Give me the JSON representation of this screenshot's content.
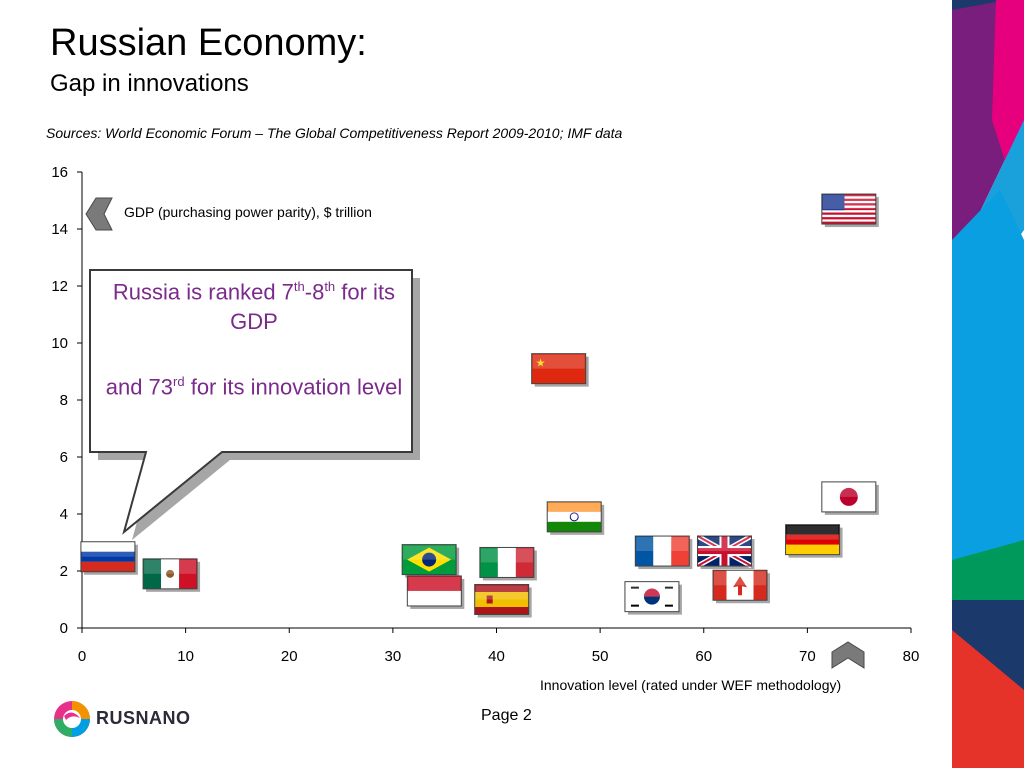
{
  "header": {
    "title": "Russian Economy:",
    "subtitle": "Gap in innovations",
    "source": "Sources: World Economic Forum – The Global Competitiveness Report 2009-2010; IMF data"
  },
  "callout": {
    "line1_a": "Russia is ranked 7",
    "line1_sup1": "th",
    "line1_b": "-8",
    "line1_sup2": "th",
    "line1_c": " for its GDP",
    "line2_a": "and 73",
    "line2_sup": "rd",
    "line2_b": " for its innovation level",
    "text_color": "#7b2a8c"
  },
  "footer": {
    "logo_text": "RUSNANO",
    "page": "Page 2"
  },
  "chart_data": {
    "type": "scatter",
    "xlabel": "Innovation level (rated under WEF methodology)",
    "ylabel": "GDP (purchasing power parity), $ trillion",
    "xlim": [
      0,
      80
    ],
    "ylim": [
      0,
      16
    ],
    "xticks": [
      0,
      10,
      20,
      30,
      40,
      50,
      60,
      70,
      80
    ],
    "yticks": [
      0,
      2,
      4,
      6,
      8,
      10,
      12,
      14,
      16
    ],
    "grid": false,
    "points": [
      {
        "flag": "us-flag-icon",
        "x": 74,
        "y": 14.7
      },
      {
        "flag": "china-flag-icon",
        "x": 46,
        "y": 9.1
      },
      {
        "flag": "japan-flag-icon",
        "x": 74,
        "y": 4.6
      },
      {
        "flag": "india-flag-icon",
        "x": 47.5,
        "y": 3.9
      },
      {
        "flag": "germany-flag-icon",
        "x": 70.5,
        "y": 3.1
      },
      {
        "flag": "uk-flag-icon",
        "x": 62,
        "y": 2.7
      },
      {
        "flag": "france-flag-icon",
        "x": 56,
        "y": 2.7
      },
      {
        "flag": "russia-flag-icon",
        "x": 2.5,
        "y": 2.5
      },
      {
        "flag": "brazil-flag-icon",
        "x": 33.5,
        "y": 2.4
      },
      {
        "flag": "italy-flag-icon",
        "x": 41,
        "y": 2.3
      },
      {
        "flag": "mexico-flag-icon",
        "x": 8.5,
        "y": 1.9
      },
      {
        "flag": "canada-flag-icon",
        "x": 63.5,
        "y": 1.5
      },
      {
        "flag": "indonesia-flag-icon",
        "x": 34,
        "y": 1.3
      },
      {
        "flag": "spain-flag-icon",
        "x": 40.5,
        "y": 1.0
      },
      {
        "flag": "korea-flag-icon",
        "x": 55,
        "y": 1.1
      }
    ]
  }
}
